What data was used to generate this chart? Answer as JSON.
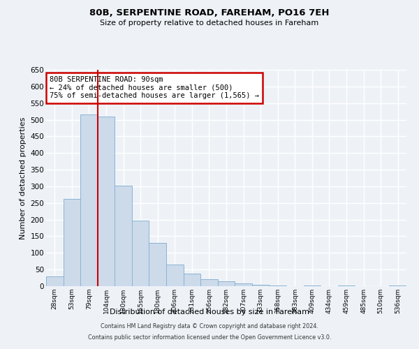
{
  "title": "80B, SERPENTINE ROAD, FAREHAM, PO16 7EH",
  "subtitle": "Size of property relative to detached houses in Fareham",
  "xlabel": "Distribution of detached houses by size in Fareham",
  "ylabel": "Number of detached properties",
  "bar_labels": [
    "28sqm",
    "53sqm",
    "79sqm",
    "104sqm",
    "130sqm",
    "155sqm",
    "180sqm",
    "206sqm",
    "231sqm",
    "256sqm",
    "282sqm",
    "307sqm",
    "333sqm",
    "358sqm",
    "383sqm",
    "409sqm",
    "434sqm",
    "459sqm",
    "485sqm",
    "510sqm",
    "536sqm"
  ],
  "bar_values": [
    30,
    262,
    515,
    510,
    302,
    197,
    131,
    65,
    38,
    22,
    15,
    8,
    4,
    2,
    1,
    3,
    0,
    3,
    0,
    1,
    3
  ],
  "bar_color": "#ccdaea",
  "bar_edge_color": "#8ab4d4",
  "annotation_text": "80B SERPENTINE ROAD: 90sqm\n← 24% of detached houses are smaller (500)\n75% of semi-detached houses are larger (1,565) →",
  "annotation_box_color": "#ffffff",
  "annotation_box_edge_color": "#cc0000",
  "red_line_color": "#cc0000",
  "ylim": [
    0,
    650
  ],
  "yticks": [
    0,
    50,
    100,
    150,
    200,
    250,
    300,
    350,
    400,
    450,
    500,
    550,
    600,
    650
  ],
  "background_color": "#eef2f7",
  "axes_bg_color": "#eef2f7",
  "grid_color": "#ffffff",
  "footer_line1": "Contains HM Land Registry data © Crown copyright and database right 2024.",
  "footer_line2": "Contains public sector information licensed under the Open Government Licence v3.0."
}
